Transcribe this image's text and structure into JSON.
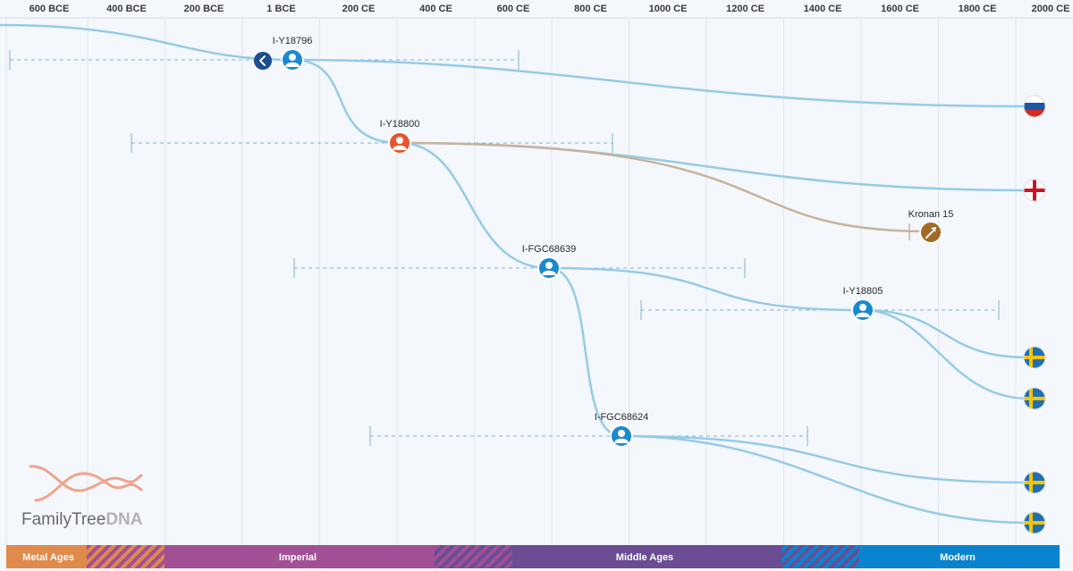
{
  "axis": {
    "labels": [
      "600 BCE",
      "400 BCE",
      "200 BCE",
      "1 BCE",
      "200 CE",
      "400 CE",
      "600 CE",
      "800 CE",
      "1000 CE",
      "1200 CE",
      "1400 CE",
      "1600 CE",
      "1800 CE",
      "2000 CE"
    ]
  },
  "nodes": [
    {
      "label": "I-Y18796",
      "style": "blue"
    },
    {
      "label": "I-Y18800",
      "style": "orange"
    },
    {
      "label": "I-FGC68639",
      "style": "blue"
    },
    {
      "label": "I-Y18805",
      "style": "blue"
    },
    {
      "label": "I-FGC68624",
      "style": "blue"
    }
  ],
  "sample": {
    "label": "Kronan 15"
  },
  "flags": [
    {
      "country": "Russia",
      "icon": "russia-flag-icon"
    },
    {
      "country": "England",
      "icon": "england-flag-icon"
    },
    {
      "country": "Sweden",
      "icon": "sweden-flag-icon"
    },
    {
      "country": "Sweden",
      "icon": "sweden-flag-icon"
    },
    {
      "country": "Sweden",
      "icon": "sweden-flag-icon"
    },
    {
      "country": "Sweden",
      "icon": "sweden-flag-icon"
    }
  ],
  "eras": [
    {
      "label": "Metal Ages",
      "color": "#e08a4c"
    },
    {
      "label": "",
      "color": "#e08a4c"
    },
    {
      "label": "Imperial",
      "color": "#a24f95"
    },
    {
      "label": "",
      "color": "#a24f95"
    },
    {
      "label": "Middle Ages",
      "color": "#6a4d92"
    },
    {
      "label": "",
      "color": "#3c6fb5"
    },
    {
      "label": "Modern",
      "color": "#0a84cf"
    }
  ],
  "logo": {
    "text_regular": "FamilyTree",
    "text_bold": "DNA"
  },
  "colors": {
    "line": "#96cbe6",
    "sample_line": "#c7b39c",
    "node_blue": "#1a8ad0",
    "node_orange": "#e6552c",
    "sample_brown": "#a26a25",
    "nav_button": "#1b4d8f",
    "gridline": "#e2e6ee",
    "logo_helix": "#f0a38b"
  }
}
